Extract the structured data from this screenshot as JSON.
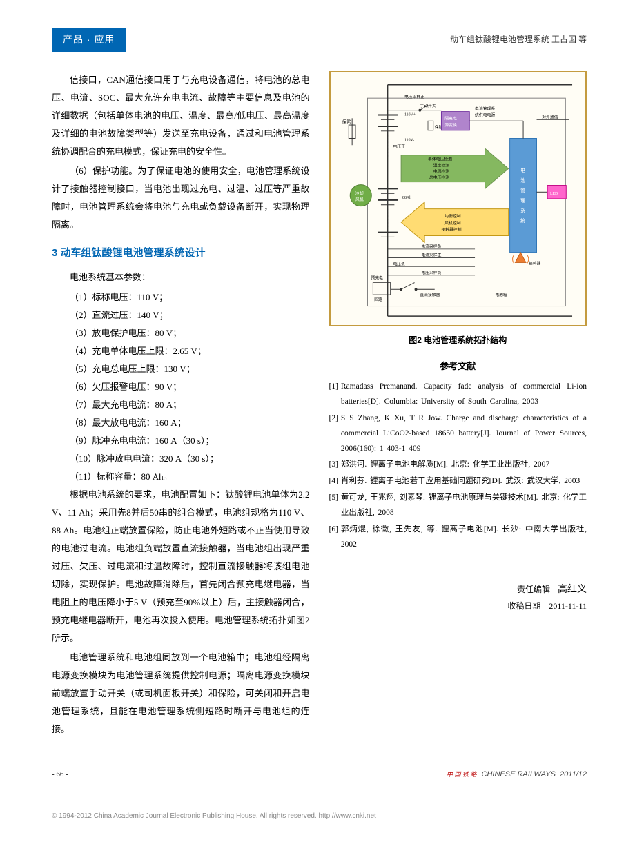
{
  "header": {
    "section_tab": "产品 · 应用",
    "running_title": "动车组钛酸锂电池管理系统  王占国 等"
  },
  "left_col": {
    "para1": "信接口，CAN通信接口用于与充电设备通信，将电池的总电压、电流、SOC、最大允许充电电流、故障等主要信息及电池的详细数据（包括单体电池的电压、温度、最高/低电压、最高温度及详细的电池故障类型等）发送至充电设备，通过和电池管理系统协调配合的充电模式，保证充电的安全性。",
    "para2": "（6）保护功能。为了保证电池的使用安全，电池管理系统设计了接触器控制接口，当电池出现过充电、过温、过压等严重故障时，电池管理系统会将电池与充电或负载设备断开，实现物理隔离。",
    "section3_title": "3 动车组钛酸锂电池管理系统设计",
    "param_intro": "电池系统基本参数：",
    "params": [
      "（1）标称电压：110 V；",
      "（2）直流过压：140 V；",
      "（3）放电保护电压：80 V；",
      "（4）充电单体电压上限：2.65 V；",
      "（5）充电总电压上限：130 V；",
      "（6）欠压报警电压：90 V；",
      "（7）最大充电电流：80 A；",
      "（8）最大放电电流：160 A；",
      "（9）脉冲充电电流：160 A（30 s）；",
      "（10）脉冲放电电流：320 A（30 s）；",
      "（11）标称容量：80 Ah。"
    ],
    "para3": "根据电池系统的要求，电池配置如下：钛酸锂电池单体为2.2 V、11 Ah；采用先8并后50串的组合模式，电池组规格为110 V、88 Ah。电池组正端放置保险，防止电池外短路或不正当使用导致的电池过电流。电池组负端放置直流接触器，当电池组出现严重过压、欠压、过电流和过温故障时，控制直流接触器将该组电池切除，实现保护。电池故障消除后，首先闭合预充电继电器，当电阻上的电压降小于5 V（预充至90%以上）后，主接触器闭合，预充电继电器断开，电池再次投入使用。电池管理系统拓扑如图2所示。",
    "para4": "电池管理系统和电池组同放到一个电池箱中；电池组经隔离电源变换模块为电池管理系统提供控制电源；隔离电源变换模块前端放置手动开关（或司机面板开关）和保险，可关闭和开启电池管理系统，且能在电池管理系统侧短路时断开与电池组的连接。"
  },
  "figure": {
    "caption": "图2  电池管理系统拓扑结构",
    "border_color": "#c49b3f",
    "bg_color": "#fffdf5",
    "labels": {
      "voltage_sample_pos": "电压采样正",
      "manual_switch": "手动开关",
      "bms_power_desc": "电池管理系\n统供电电源",
      "110v_plus": "110V+",
      "110v_minus": "110V-",
      "fuse": "保险",
      "iso_power": "隔离电\n源变换",
      "ext_comm": "对外通信",
      "voltage_pos": "电压正",
      "detect_block": "单体电压检测\n温度检测\n电流检测\n总电压检测",
      "bms_box": "电\n池\n管\n理\n系\n统",
      "led": "LED",
      "cooling_fan": "冷却\n风机",
      "capacity": "88Ah",
      "control_block": "均衡控制\n风机控制\n接触器控制",
      "buzzer": "蜂鸣器",
      "current_sample_neg": "电流采样负",
      "current_sample_pos": "电流采样正",
      "voltage_neg": "电压负",
      "voltage_sample_neg": "电压采样负",
      "precharge": "预充电\n回路",
      "dc_contactor": "直流接触器",
      "battery_box": "电池箱"
    },
    "colors": {
      "bms_box_fill": "#5b9bd5",
      "bms_box_border": "#2e74b5",
      "iso_fill": "#b084cc",
      "iso_border": "#7030a0",
      "led_fill": "#ff66cc",
      "led_border": "#c00080",
      "arrow_green_fill": "#70ad47",
      "arrow_green_border": "#548235",
      "arrow_yellow_fill": "#ffd966",
      "arrow_yellow_border": "#bf9000",
      "fan_fill": "#70ad47",
      "buzzer_fill": "#ed7d31",
      "line_color": "#333333",
      "inner_box_border": "#7f7f7f"
    }
  },
  "references": {
    "title": "参考文献",
    "items": [
      "Ramadass Premanand. Capacity fade analysis of commercial Li-ion batteries[D]. Columbia: University of South Carolina, 2003",
      "S S Zhang, K Xu, T R Jow. Charge and discharge characteristics of a commercial LiCoO2-based 18650 battery[J]. Journal of Power Sources, 2006(160): 1 403-1 409",
      "郑洪河. 锂离子电池电解质[M]. 北京: 化学工业出版社, 2007",
      "肖利芬. 锂离子电池若干应用基础问题研究[D]. 武汉: 武汉大学, 2003",
      "黄可龙, 王兆翔, 刘素琴. 锂离子电池原理与关键技术[M]. 北京: 化学工业出版社, 2008",
      "郭炳焜, 徐徽, 王先友, 等. 锂离子电池[M]. 长沙: 中南大学出版社, 2002"
    ]
  },
  "editor": {
    "label": "责任编辑",
    "name": "高红义",
    "date_label": "收稿日期",
    "date": "2011-11-11"
  },
  "footer": {
    "page_num": "- 66 -",
    "journal_cn": "中 国 铁 路",
    "journal_en": "CHINESE RAILWAYS",
    "issue": "2011/12",
    "copyright": "© 1994-2012 China Academic Journal Electronic Publishing House. All rights reserved.   http://www.cnki.net"
  }
}
